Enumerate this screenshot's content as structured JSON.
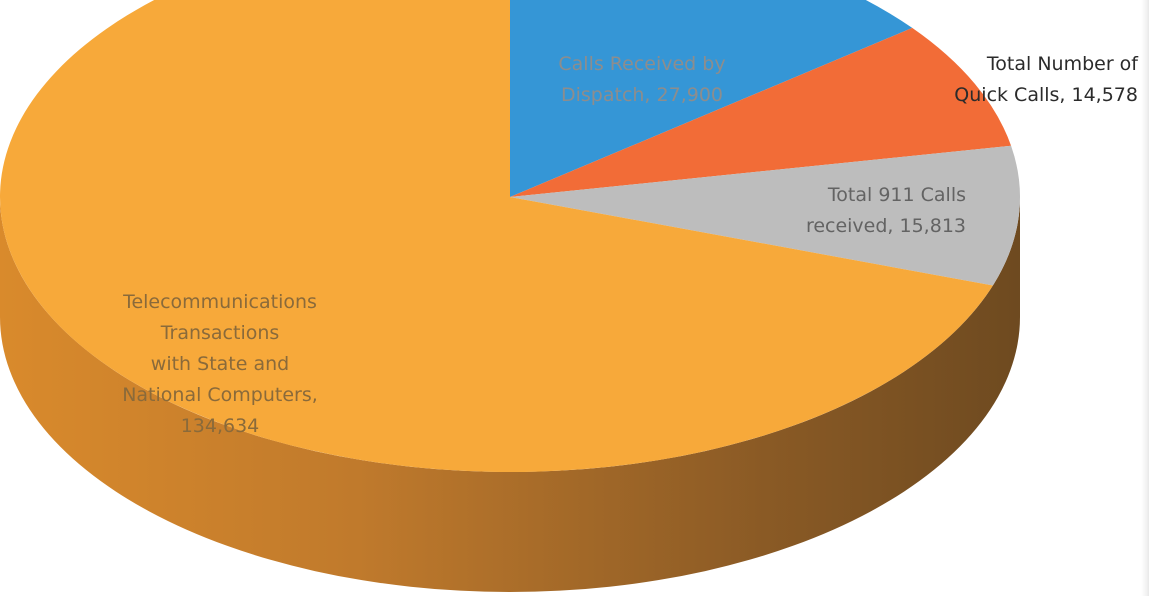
{
  "chart_data": {
    "type": "pie",
    "style": "3d",
    "slices": [
      {
        "category": "Calls Received by Dispatch",
        "value": 27900,
        "label_lines": [
          "Calls Received by",
          "Dispatch, 27,900"
        ],
        "color": "#3596d6",
        "label_color": "#8d8d8d"
      },
      {
        "category": "Total Number of Quick Calls",
        "value": 14578,
        "label_lines": [
          "Total Number of",
          "Quick Calls, 14,578"
        ],
        "color": "#f26c37",
        "label_color": "#2b2b2b"
      },
      {
        "category": "Total 911 Calls received",
        "value": 15813,
        "label_lines": [
          "Total 911 Calls",
          "received, 15,813"
        ],
        "color": "#bdbdbd",
        "label_color": "#636363"
      },
      {
        "category": "Telecommunications Transactions with State and National Computers",
        "value": 134634,
        "label_lines": [
          "Telecommunications",
          "Transactions",
          "with State and",
          "National Computers,",
          "134,634"
        ],
        "color": "#f7a93a",
        "label_color": "#8a6a3a"
      }
    ],
    "side_color": "#a86a2a",
    "legend": "none"
  }
}
